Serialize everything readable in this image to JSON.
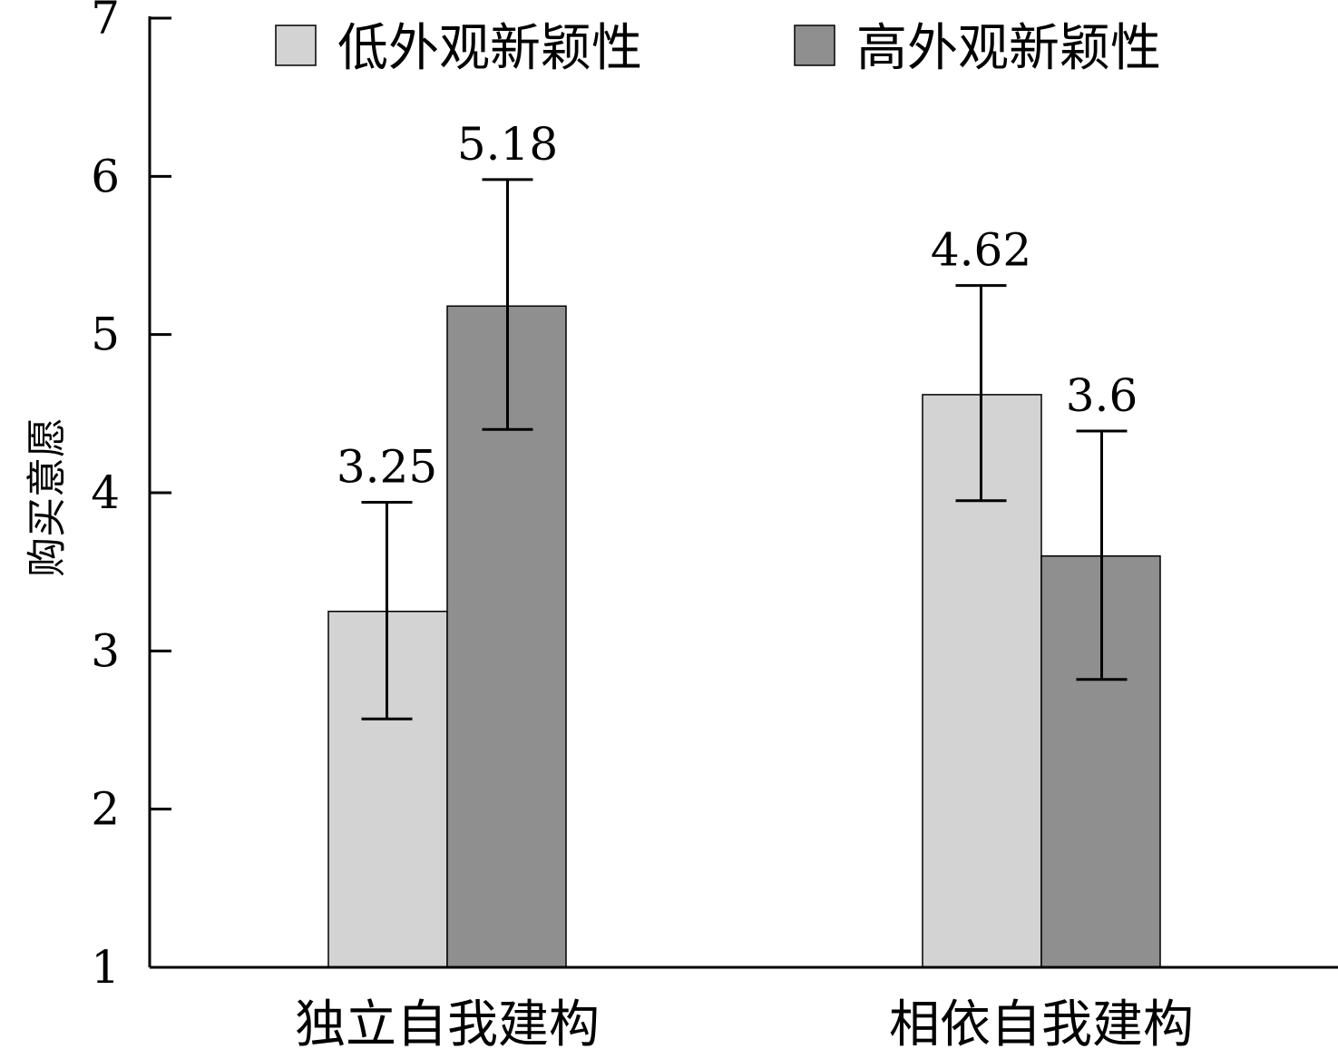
{
  "chart_data": {
    "type": "bar",
    "categories": [
      "独立自我建构",
      "相依自我建构"
    ],
    "series": [
      {
        "name": "低外观新颖性",
        "color": "#d3d3d3",
        "values": [
          3.25,
          4.62
        ],
        "labels": [
          "3.25",
          "4.62"
        ],
        "error_low": [
          2.57,
          3.95
        ],
        "error_high": [
          3.94,
          5.31
        ]
      },
      {
        "name": "高外观新颖性",
        "color": "#8f8f8f",
        "values": [
          5.18,
          3.6
        ],
        "labels": [
          "5.18",
          "3.6"
        ],
        "error_low": [
          4.4,
          2.82
        ],
        "error_high": [
          5.98,
          4.39
        ]
      }
    ],
    "ylabel": "购买意愿",
    "ylim": [
      1,
      7
    ],
    "yticks": [
      "1",
      "2",
      "3",
      "4",
      "5",
      "6",
      "7"
    ],
    "legend_position": "top",
    "grid": false
  }
}
